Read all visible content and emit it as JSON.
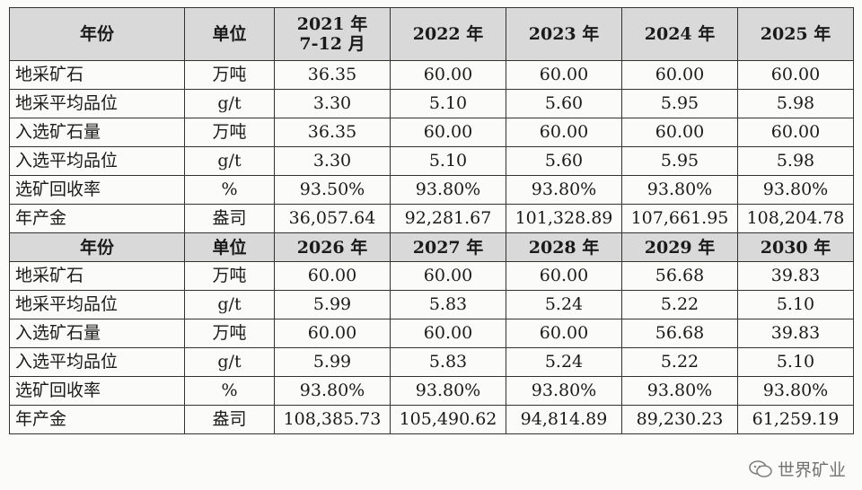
{
  "table": {
    "header_top": {
      "year_label": "年份",
      "unit_label": "单位",
      "years": [
        "2021 年\n7-12 月",
        "2022 年",
        "2023 年",
        "2024 年",
        "2025 年"
      ]
    },
    "header_bottom": {
      "year_label": "年份",
      "unit_label": "单位",
      "years": [
        "2026 年",
        "2027 年",
        "2028 年",
        "2029 年",
        "2030 年"
      ]
    },
    "rows_top": [
      {
        "label": "地采矿石",
        "unit": "万吨",
        "values": [
          "36.35",
          "60.00",
          "60.00",
          "60.00",
          "60.00"
        ]
      },
      {
        "label": "地采平均品位",
        "unit": "g/t",
        "values": [
          "3.30",
          "5.10",
          "5.60",
          "5.95",
          "5.98"
        ]
      },
      {
        "label": "入选矿石量",
        "unit": "万吨",
        "values": [
          "36.35",
          "60.00",
          "60.00",
          "60.00",
          "60.00"
        ]
      },
      {
        "label": "入选平均品位",
        "unit": "g/t",
        "values": [
          "3.30",
          "5.10",
          "5.60",
          "5.95",
          "5.98"
        ]
      },
      {
        "label": "选矿回收率",
        "unit": "%",
        "values": [
          "93.50%",
          "93.80%",
          "93.80%",
          "93.80%",
          "93.80%"
        ]
      },
      {
        "label": "年产金",
        "unit": "盎司",
        "values": [
          "36,057.64",
          "92,281.67",
          "101,328.89",
          "107,661.95",
          "108,204.78"
        ]
      }
    ],
    "rows_bottom": [
      {
        "label": "地采矿石",
        "unit": "万吨",
        "values": [
          "60.00",
          "60.00",
          "60.00",
          "56.68",
          "39.83"
        ]
      },
      {
        "label": "地采平均品位",
        "unit": "g/t",
        "values": [
          "5.99",
          "5.83",
          "5.24",
          "5.22",
          "5.10"
        ]
      },
      {
        "label": "入选矿石量",
        "unit": "万吨",
        "values": [
          "60.00",
          "60.00",
          "60.00",
          "56.68",
          "39.83"
        ]
      },
      {
        "label": "入选平均品位",
        "unit": "g/t",
        "values": [
          "5.99",
          "5.83",
          "5.24",
          "5.22",
          "5.10"
        ]
      },
      {
        "label": "选矿回收率",
        "unit": "%",
        "values": [
          "93.80%",
          "93.80%",
          "93.80%",
          "93.80%",
          "93.80%"
        ]
      },
      {
        "label": "年产金",
        "unit": "盎司",
        "values": [
          "108,385.73",
          "105,490.62",
          "94,814.89",
          "89,230.23",
          "61,259.19"
        ]
      }
    ]
  },
  "watermark": {
    "text": "世界矿业",
    "icon": "wechat-icon"
  }
}
